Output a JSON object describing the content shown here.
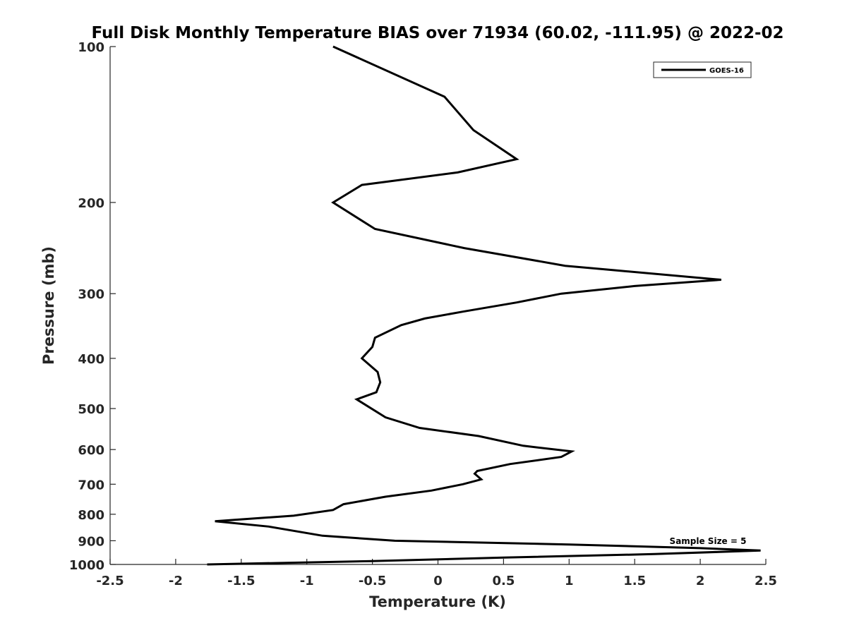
{
  "chart_data": {
    "type": "line",
    "title": "Full Disk Monthly Temperature BIAS over 71934 (60.02, -111.95) @ 2022-02",
    "xlabel": "Temperature (K)",
    "ylabel": "Pressure (mb)",
    "xlim": [
      -2.5,
      2.5
    ],
    "ylim": [
      100,
      1000
    ],
    "y_scale": "log",
    "y_reversed": true,
    "x_ticks": [
      -2.5,
      -2,
      -1.5,
      -1,
      -0.5,
      0,
      0.5,
      1,
      1.5,
      2,
      2.5
    ],
    "x_tick_labels": [
      "-2.5",
      "-2",
      "-1.5",
      "-1",
      "-0.5",
      "0",
      "0.5",
      "1",
      "1.5",
      "2",
      "2.5"
    ],
    "y_ticks": [
      100,
      200,
      300,
      400,
      500,
      600,
      700,
      800,
      900,
      1000
    ],
    "y_tick_labels": [
      "100",
      "200",
      "300",
      "400",
      "500",
      "600",
      "700",
      "800",
      "900",
      "1000"
    ],
    "grid": false,
    "legend_position": "top-right",
    "annotation": "Sample Size = 5",
    "series": [
      {
        "name": "GOES-16",
        "color": "#000000",
        "points": [
          {
            "t": -0.8,
            "p": 100
          },
          {
            "t": 0.05,
            "p": 125
          },
          {
            "t": 0.27,
            "p": 145
          },
          {
            "t": 0.6,
            "p": 165
          },
          {
            "t": 0.15,
            "p": 175
          },
          {
            "t": -0.58,
            "p": 185
          },
          {
            "t": -0.8,
            "p": 200
          },
          {
            "t": -0.48,
            "p": 225
          },
          {
            "t": 0.2,
            "p": 245
          },
          {
            "t": 0.97,
            "p": 265
          },
          {
            "t": 2.16,
            "p": 282
          },
          {
            "t": 1.5,
            "p": 290
          },
          {
            "t": 0.94,
            "p": 300
          },
          {
            "t": 0.6,
            "p": 312
          },
          {
            "t": 0.19,
            "p": 325
          },
          {
            "t": -0.1,
            "p": 335
          },
          {
            "t": -0.28,
            "p": 345
          },
          {
            "t": -0.48,
            "p": 365
          },
          {
            "t": -0.5,
            "p": 380
          },
          {
            "t": -0.58,
            "p": 400
          },
          {
            "t": -0.46,
            "p": 425
          },
          {
            "t": -0.44,
            "p": 445
          },
          {
            "t": -0.47,
            "p": 465
          },
          {
            "t": -0.62,
            "p": 480
          },
          {
            "t": -0.4,
            "p": 520
          },
          {
            "t": -0.14,
            "p": 545
          },
          {
            "t": 0.31,
            "p": 565
          },
          {
            "t": 0.65,
            "p": 590
          },
          {
            "t": 1.02,
            "p": 605
          },
          {
            "t": 0.94,
            "p": 620
          },
          {
            "t": 0.55,
            "p": 640
          },
          {
            "t": 0.3,
            "p": 660
          },
          {
            "t": 0.28,
            "p": 668
          },
          {
            "t": 0.33,
            "p": 685
          },
          {
            "t": 0.19,
            "p": 700
          },
          {
            "t": -0.05,
            "p": 720
          },
          {
            "t": -0.4,
            "p": 740
          },
          {
            "t": -0.72,
            "p": 765
          },
          {
            "t": -0.8,
            "p": 785
          },
          {
            "t": -1.1,
            "p": 805
          },
          {
            "t": -1.7,
            "p": 825
          },
          {
            "t": -1.29,
            "p": 845
          },
          {
            "t": -0.88,
            "p": 880
          },
          {
            "t": -0.33,
            "p": 900
          },
          {
            "t": 1.0,
            "p": 915
          },
          {
            "t": 2.0,
            "p": 930
          },
          {
            "t": 2.46,
            "p": 940
          },
          {
            "t": 1.65,
            "p": 955
          },
          {
            "t": 0.5,
            "p": 970
          },
          {
            "t": -0.5,
            "p": 985
          },
          {
            "t": -1.76,
            "p": 1000
          }
        ]
      }
    ]
  }
}
